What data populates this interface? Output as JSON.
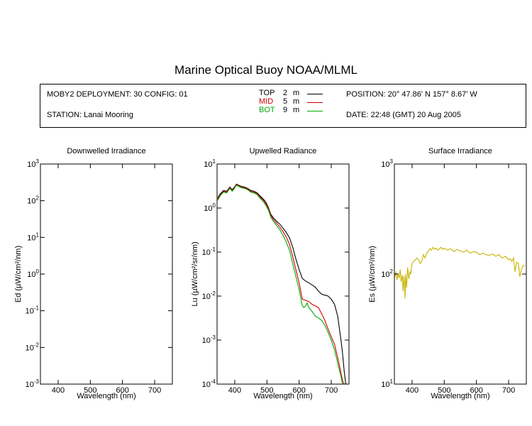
{
  "title": "Marine Optical Buoy NOAA/MLML",
  "info": {
    "deployment": "MOBY2 DEPLOYMENT: 30 CONFIG: 01",
    "station": "STATION: Lanai Mooring",
    "position": "POSITION: 20° 47.86' N   157° 8.67' W",
    "date": "DATE: 22:48 (GMT) 20 Aug 2005",
    "legend": [
      {
        "label": "TOP",
        "depth": "2",
        "unit": "m",
        "color": "#000000"
      },
      {
        "label": "MID",
        "depth": "5",
        "unit": "m",
        "color": "#cc0000"
      },
      {
        "label": "BOT",
        "depth": "9",
        "unit": "m",
        "color": "#00aa00"
      }
    ]
  },
  "chart_data": [
    {
      "type": "line",
      "title": "Downwelled Irradiance",
      "xlabel": "Wavelength (nm)",
      "ylabel": "Ed  (µW/cm²/nm)",
      "xlim": [
        345,
        755
      ],
      "ylim": [
        0.001,
        1000
      ],
      "yscale": "log",
      "xticks": [
        400,
        500,
        600,
        700
      ],
      "yticks": [
        {
          "base": "10",
          "exp": "-3"
        },
        {
          "base": "10",
          "exp": "-2"
        },
        {
          "base": "10",
          "exp": "-1"
        },
        {
          "base": "10",
          "exp": "0"
        },
        {
          "base": "10",
          "exp": "1"
        },
        {
          "base": "10",
          "exp": "2"
        },
        {
          "base": "10",
          "exp": "3"
        }
      ],
      "series": []
    },
    {
      "type": "line",
      "title": "Upwelled Radiance",
      "xlabel": "Wavelength (nm)",
      "ylabel": "Lu  (µW/cm²/sr/nm)",
      "xlim": [
        345,
        755
      ],
      "ylim": [
        0.0001,
        10
      ],
      "yscale": "log",
      "xticks": [
        400,
        500,
        600,
        700
      ],
      "yticks": [
        {
          "base": "10",
          "exp": "-4"
        },
        {
          "base": "10",
          "exp": "-3"
        },
        {
          "base": "10",
          "exp": "-2"
        },
        {
          "base": "10",
          "exp": "-1"
        },
        {
          "base": "10",
          "exp": "0"
        },
        {
          "base": "10",
          "exp": "1"
        }
      ],
      "series": [
        {
          "color": "#000000",
          "x": [
            347,
            355,
            365,
            375,
            385,
            392,
            398,
            405,
            412,
            420,
            430,
            440,
            450,
            460,
            470,
            478,
            485,
            492,
            498,
            505,
            512,
            520,
            530,
            540,
            550,
            560,
            570,
            580,
            590,
            600,
            610,
            620,
            630,
            640,
            650,
            660,
            670,
            680,
            690,
            700,
            710,
            720,
            730,
            735,
            740,
            745
          ],
          "y": [
            1.7,
            2.1,
            2.5,
            2.4,
            3.0,
            2.6,
            2.9,
            3.5,
            3.3,
            3.1,
            3.0,
            2.8,
            2.5,
            2.4,
            2.2,
            1.9,
            1.7,
            1.5,
            1.3,
            1.0,
            0.72,
            0.6,
            0.5,
            0.43,
            0.35,
            0.28,
            0.21,
            0.13,
            0.07,
            0.04,
            0.025,
            0.022,
            0.02,
            0.018,
            0.016,
            0.013,
            0.011,
            0.0105,
            0.01,
            0.0085,
            0.0065,
            0.0035,
            0.001,
            0.0005,
            0.0002,
            0.0001
          ]
        },
        {
          "color": "#cc0000",
          "x": [
            347,
            355,
            365,
            375,
            385,
            392,
            398,
            405,
            412,
            420,
            430,
            440,
            450,
            460,
            470,
            478,
            485,
            492,
            498,
            505,
            512,
            520,
            530,
            540,
            550,
            560,
            570,
            580,
            590,
            600,
            610,
            620,
            630,
            640,
            650,
            660,
            670,
            680,
            690,
            700,
            710,
            720,
            730,
            735,
            740
          ],
          "y": [
            1.6,
            2.0,
            2.4,
            2.3,
            2.9,
            2.5,
            2.8,
            3.4,
            3.2,
            3.0,
            2.9,
            2.7,
            2.4,
            2.3,
            2.1,
            1.8,
            1.6,
            1.4,
            1.2,
            0.95,
            0.68,
            0.55,
            0.45,
            0.37,
            0.29,
            0.22,
            0.15,
            0.08,
            0.04,
            0.02,
            0.0085,
            0.008,
            0.0075,
            0.0065,
            0.006,
            0.0055,
            0.004,
            0.0028,
            0.0018,
            0.0012,
            0.0008,
            0.0004,
            0.00018,
            0.00012,
            0.0001
          ]
        },
        {
          "color": "#00aa00",
          "x": [
            347,
            355,
            365,
            375,
            385,
            392,
            398,
            405,
            412,
            420,
            430,
            440,
            450,
            460,
            470,
            478,
            485,
            492,
            498,
            505,
            512,
            520,
            530,
            540,
            550,
            560,
            570,
            580,
            590,
            600,
            610,
            615,
            620,
            625,
            630,
            640,
            650,
            660,
            670,
            680,
            690,
            700,
            710,
            720,
            730,
            735
          ],
          "y": [
            1.5,
            1.9,
            2.3,
            2.2,
            2.8,
            2.4,
            2.7,
            3.3,
            3.1,
            2.9,
            2.8,
            2.6,
            2.3,
            2.2,
            2.0,
            1.7,
            1.5,
            1.3,
            1.1,
            0.88,
            0.62,
            0.5,
            0.4,
            0.32,
            0.24,
            0.17,
            0.11,
            0.055,
            0.028,
            0.014,
            0.006,
            0.0055,
            0.006,
            0.007,
            0.0055,
            0.0045,
            0.0035,
            0.0032,
            0.0028,
            0.0022,
            0.0015,
            0.001,
            0.0006,
            0.0003,
            0.00015,
            0.0001
          ]
        }
      ]
    },
    {
      "type": "line",
      "title": "Surface Irradiance",
      "xlabel": "Wavelength (nm)",
      "ylabel": "Es  (µW/cm²/nm)",
      "xlim": [
        345,
        755
      ],
      "ylim": [
        10,
        1000
      ],
      "yscale": "log",
      "xticks": [
        400,
        500,
        600,
        700
      ],
      "yticks": [
        {
          "base": "10",
          "exp": "1"
        },
        {
          "base": "10",
          "exp": "2"
        },
        {
          "base": "10",
          "exp": "3"
        }
      ],
      "series": [
        {
          "color": "#c8b400",
          "x": [
            347,
            350,
            353,
            356,
            360,
            363,
            366,
            370,
            372,
            375,
            378,
            380,
            383,
            386,
            390,
            393,
            396,
            400,
            405,
            410,
            415,
            420,
            425,
            430,
            435,
            440,
            445,
            450,
            455,
            460,
            465,
            470,
            475,
            480,
            485,
            490,
            495,
            500,
            510,
            520,
            530,
            540,
            550,
            560,
            570,
            580,
            590,
            600,
            610,
            620,
            630,
            640,
            650,
            660,
            670,
            680,
            690,
            700,
            705,
            710,
            715,
            720,
            725,
            730,
            735,
            740,
            745,
            750
          ],
          "y": [
            95,
            105,
            88,
            100,
            92,
            110,
            85,
            98,
            70,
            96,
            60,
            100,
            75,
            115,
            90,
            105,
            100,
            125,
            130,
            135,
            140,
            135,
            125,
            130,
            150,
            140,
            155,
            160,
            170,
            165,
            175,
            168,
            172,
            165,
            170,
            175,
            168,
            172,
            165,
            170,
            160,
            168,
            162,
            158,
            165,
            155,
            160,
            158,
            150,
            155,
            150,
            148,
            152,
            145,
            150,
            140,
            145,
            135,
            138,
            130,
            140,
            105,
            128,
            125,
            95,
            110,
            120,
            118
          ]
        }
      ]
    }
  ]
}
